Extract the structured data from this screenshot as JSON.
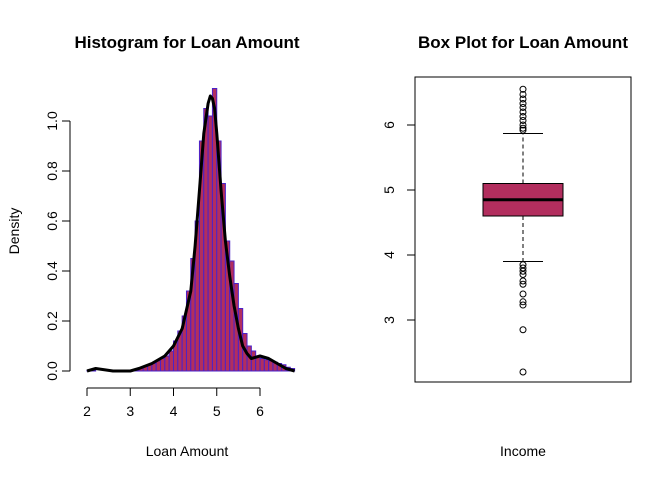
{
  "chart_data": [
    {
      "type": "bar",
      "title": "Histogram for Loan Amount",
      "xlabel": "Loan Amount",
      "ylabel": "Density",
      "xlim": [
        2,
        6.8
      ],
      "ylim": [
        0,
        1.1
      ],
      "xticks": [
        2,
        3,
        4,
        5,
        6
      ],
      "yticks": [
        0.0,
        0.2,
        0.4,
        0.6,
        0.8,
        1.0
      ],
      "ytick_labels": [
        "0.0",
        "0.2",
        "0.4",
        "0.6",
        "0.8",
        "1.0"
      ],
      "bin_edges": [
        2.0,
        2.1,
        2.2,
        2.3,
        2.4,
        2.5,
        2.6,
        2.7,
        2.8,
        2.9,
        3.0,
        3.1,
        3.2,
        3.3,
        3.4,
        3.5,
        3.6,
        3.7,
        3.8,
        3.9,
        4.0,
        4.1,
        4.2,
        4.3,
        4.4,
        4.5,
        4.6,
        4.7,
        4.8,
        4.9,
        5.0,
        5.1,
        5.2,
        5.3,
        5.4,
        5.5,
        5.6,
        5.7,
        5.8,
        5.9,
        6.0,
        6.1,
        6.2,
        6.3,
        6.4,
        6.5,
        6.6,
        6.7,
        6.8
      ],
      "densities": [
        0.002,
        0.002,
        0,
        0,
        0,
        0,
        0,
        0,
        0,
        0,
        0.004,
        0.006,
        0.012,
        0.02,
        0.025,
        0.03,
        0.04,
        0.05,
        0.06,
        0.08,
        0.12,
        0.16,
        0.22,
        0.32,
        0.45,
        0.6,
        0.92,
        1.05,
        1.02,
        1.13,
        0.92,
        0.75,
        0.52,
        0.44,
        0.35,
        0.25,
        0.15,
        0.1,
        0.08,
        0.06,
        0.05,
        0.045,
        0.04,
        0.035,
        0.03,
        0.025,
        0.015,
        0.01
      ],
      "bar_fill": "#b22e5e",
      "bar_stroke": "#4b22c9",
      "density_curve": {
        "color": "#000000",
        "x": [
          2.0,
          2.2,
          2.6,
          3.0,
          3.2,
          3.5,
          3.8,
          4.0,
          4.2,
          4.4,
          4.5,
          4.6,
          4.7,
          4.8,
          4.85,
          4.9,
          4.95,
          5.0,
          5.1,
          5.2,
          5.3,
          5.4,
          5.5,
          5.6,
          5.7,
          5.8,
          6.0,
          6.2,
          6.4,
          6.6,
          6.8
        ],
        "y": [
          0.0,
          0.01,
          0.0,
          0.0,
          0.01,
          0.03,
          0.06,
          0.1,
          0.17,
          0.32,
          0.5,
          0.72,
          0.95,
          1.07,
          1.1,
          1.09,
          1.05,
          0.95,
          0.72,
          0.52,
          0.38,
          0.26,
          0.17,
          0.1,
          0.07,
          0.05,
          0.06,
          0.05,
          0.03,
          0.01,
          0.0
        ]
      }
    },
    {
      "type": "box",
      "title": "Box Plot for Loan Amount",
      "xlabel": "Income",
      "ylim": [
        2.1,
        6.7
      ],
      "yticks": [
        3,
        4,
        5,
        6
      ],
      "fill": "#b22e5e",
      "whisker_low": 3.9,
      "q1": 4.6,
      "median": 4.85,
      "q3": 5.1,
      "whisker_high": 5.87,
      "outliers": [
        6.55,
        6.47,
        6.4,
        6.33,
        6.27,
        6.2,
        6.13,
        6.07,
        6.0,
        5.95,
        5.92,
        3.85,
        3.8,
        3.75,
        3.7,
        3.6,
        3.55,
        3.4,
        3.28,
        3.23,
        2.85,
        2.2
      ]
    }
  ]
}
